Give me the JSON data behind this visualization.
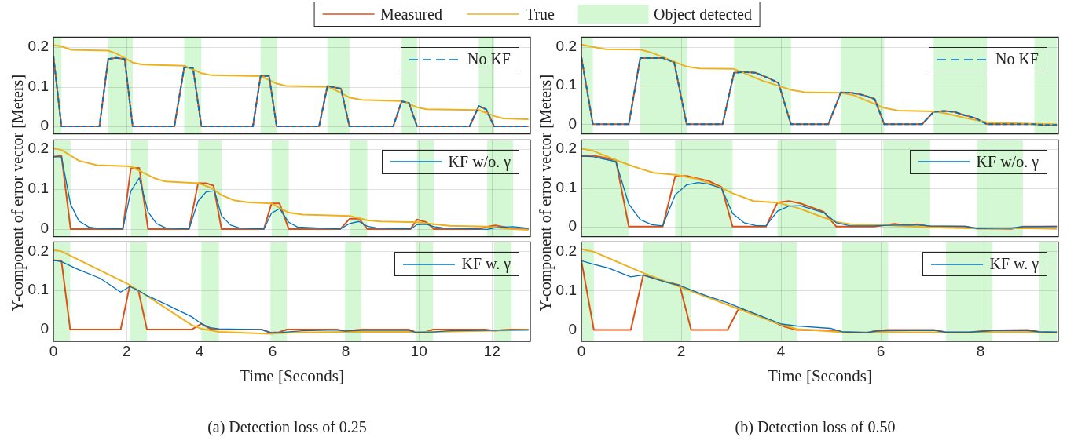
{
  "chart_data": [
    {
      "type": "line",
      "xlim": [
        0,
        13.05
      ],
      "xticks": [
        0,
        2,
        4,
        6,
        8,
        10,
        12
      ],
      "ylim": [
        -0.019,
        0.225
      ],
      "yticks": [
        0,
        0.1,
        0.2
      ],
      "grid": true,
      "legend": "top right",
      "tick_labels": "y",
      "bands": [
        {
          "axis": "x",
          "from": 0,
          "to": 0.22,
          "color": "#d4f8d4",
          "label": "Object detected"
        },
        {
          "axis": "x",
          "from": 1.5,
          "to": 2.17,
          "color": "#d4f8d4"
        },
        {
          "axis": "x",
          "from": 3.58,
          "to": 4.05,
          "color": "#d4f8d4"
        },
        {
          "axis": "x",
          "from": 5.67,
          "to": 6.11,
          "color": "#d4f8d4"
        },
        {
          "axis": "x",
          "from": 7.5,
          "to": 8.1,
          "color": "#d4f8d4"
        },
        {
          "axis": "x",
          "from": 9.53,
          "to": 9.95,
          "color": "#d4f8d4"
        },
        {
          "axis": "x",
          "from": 11.64,
          "to": 12.06,
          "color": "#d4f8d4"
        }
      ],
      "series": [
        {
          "name": "Measured",
          "color": "#d95319",
          "x": [
            0,
            0.22,
            1.26,
            1.5,
            1.72,
            1.95,
            2.17,
            3.31,
            3.58,
            3.82,
            4.05,
            5.46,
            5.67,
            5.9,
            6.11,
            7.27,
            7.5,
            7.87,
            8.1,
            9.3,
            9.53,
            9.73,
            9.95,
            11.39,
            11.64,
            11.84,
            12.06,
            13.0
          ],
          "values": [
            0.178,
            0,
            0,
            0.17,
            0.173,
            0.17,
            0,
            0,
            0.149,
            0.147,
            0,
            0,
            0.127,
            0.128,
            0,
            0,
            0.102,
            0.095,
            0,
            0,
            0.063,
            0.059,
            0,
            0,
            0.051,
            0.043,
            0,
            0
          ]
        },
        {
          "name": "True",
          "color": "#edb120",
          "x": [
            0,
            0.22,
            0.49,
            1.5,
            1.72,
            2.17,
            2.44,
            3.58,
            4.05,
            4.32,
            5.67,
            6.11,
            6.37,
            7.5,
            7.71,
            8.1,
            8.43,
            9.53,
            9.95,
            10.21,
            11.64,
            12.06,
            12.31,
            13.0
          ],
          "values": [
            0.205,
            0.202,
            0.193,
            0.191,
            0.184,
            0.161,
            0.156,
            0.153,
            0.134,
            0.129,
            0.127,
            0.108,
            0.102,
            0.1,
            0.092,
            0.073,
            0.067,
            0.064,
            0.048,
            0.043,
            0.041,
            0.026,
            0.02,
            0.018
          ]
        },
        {
          "name": "No KF",
          "color": "#0072bd",
          "line_style": "dashed",
          "x": [
            0,
            0.22,
            1.26,
            1.5,
            1.72,
            1.95,
            2.17,
            3.31,
            3.58,
            3.82,
            4.05,
            5.46,
            5.67,
            5.9,
            6.11,
            7.27,
            7.5,
            7.87,
            8.1,
            9.3,
            9.53,
            9.73,
            9.95,
            11.39,
            11.64,
            11.84,
            12.06,
            13.0
          ],
          "values": [
            0.178,
            0,
            0,
            0.17,
            0.173,
            0.17,
            0,
            0,
            0.149,
            0.147,
            0,
            0,
            0.127,
            0.128,
            0,
            0,
            0.102,
            0.095,
            0,
            0,
            0.063,
            0.059,
            0,
            0,
            0.051,
            0.043,
            0,
            0
          ]
        }
      ]
    },
    {
      "type": "line",
      "ylabel": "Y-component of error vector [Meters]",
      "xlim": [
        0,
        13.05
      ],
      "xticks": [
        0,
        2,
        4,
        6,
        8,
        10,
        12
      ],
      "ylim": [
        -0.019,
        0.223
      ],
      "yticks": [
        0,
        0.1,
        0.2
      ],
      "grid": true,
      "legend": "top right",
      "tick_labels": "y",
      "bands": [
        {
          "axis": "x",
          "from": 0,
          "to": 0.47,
          "color": "#d4f8d4"
        },
        {
          "axis": "x",
          "from": 2.12,
          "to": 2.59,
          "color": "#d4f8d4"
        },
        {
          "axis": "x",
          "from": 3.96,
          "to": 4.6,
          "color": "#d4f8d4"
        },
        {
          "axis": "x",
          "from": 5.97,
          "to": 6.44,
          "color": "#d4f8d4"
        },
        {
          "axis": "x",
          "from": 8.11,
          "to": 8.59,
          "color": "#d4f8d4"
        },
        {
          "axis": "x",
          "from": 9.95,
          "to": 10.41,
          "color": "#d4f8d4"
        },
        {
          "axis": "x",
          "from": 11.87,
          "to": 12.58,
          "color": "#d4f8d4"
        }
      ],
      "series": [
        {
          "color": "#d95319",
          "x": [
            0,
            0.22,
            0.47,
            1.9,
            2.12,
            2.35,
            2.59,
            3.71,
            3.96,
            4.18,
            4.38,
            4.6,
            5.76,
            5.97,
            6.19,
            6.44,
            7.85,
            8.11,
            8.36,
            8.59,
            9.77,
            9.95,
            10.21,
            10.41,
            11.64,
            11.87,
            12.09,
            12.36,
            12.58,
            13.0
          ],
          "values": [
            0.181,
            0.184,
            0,
            0,
            0.152,
            0.153,
            0,
            0,
            0.115,
            0.115,
            0.109,
            0,
            0,
            0.064,
            0.064,
            0,
            0,
            0.026,
            0.026,
            0,
            0,
            0.024,
            0.017,
            0,
            0,
            0.006,
            0.009,
            0.005,
            0,
            0
          ]
        },
        {
          "color": "#edb120",
          "x": [
            0,
            0.22,
            0.7,
            1.19,
            2.12,
            2.35,
            2.8,
            3.07,
            3.96,
            4.32,
            4.6,
            4.94,
            5.3,
            5.97,
            6.19,
            6.44,
            6.82,
            8.11,
            8.34,
            8.59,
            8.96,
            9.95,
            10.41,
            10.84,
            11.87,
            12.58,
            13.0
          ],
          "values": [
            0.202,
            0.198,
            0.171,
            0.16,
            0.157,
            0.146,
            0.126,
            0.119,
            0.115,
            0.103,
            0.085,
            0.072,
            0.067,
            0.064,
            0.053,
            0.041,
            0.036,
            0.033,
            0.028,
            0.022,
            0.019,
            0.017,
            0.012,
            0.008,
            0.006,
            0,
            -0.002
          ]
        },
        {
          "name": "KF w/o. γ",
          "color": "#0072bd",
          "x": [
            0,
            0.22,
            0.47,
            0.7,
            0.97,
            1.19,
            1.9,
            2.12,
            2.35,
            2.59,
            2.82,
            3.07,
            3.71,
            3.96,
            4.18,
            4.41,
            4.6,
            4.85,
            5.08,
            5.76,
            5.97,
            6.19,
            6.44,
            6.68,
            7.85,
            8.11,
            8.36,
            8.59,
            8.83,
            9.77,
            9.95,
            10.21,
            10.41,
            10.66,
            11.87,
            12.09,
            12.36,
            12.58,
            13.0
          ],
          "values": [
            0.181,
            0.181,
            0.062,
            0.02,
            0.005,
            0.002,
            0,
            0.095,
            0.128,
            0.043,
            0.014,
            0.003,
            0,
            0.07,
            0.093,
            0.096,
            0.033,
            0.01,
            0.003,
            0,
            0.04,
            0.051,
            0.017,
            0.005,
            0,
            0.014,
            0.019,
            0.007,
            0.003,
            0,
            0.011,
            0.012,
            0.006,
            0.003,
            -0.001,
            0.003,
            0.005,
            0.006,
            0.002
          ]
        }
      ]
    },
    {
      "type": "line",
      "xlabel": "Time [Seconds]",
      "annotations": [
        "(a) Detection loss of 0.25"
      ],
      "xlim": [
        0,
        13.05
      ],
      "xticks": [
        0,
        2,
        4,
        6,
        8,
        10,
        12
      ],
      "ylim": [
        -0.03,
        0.224
      ],
      "yticks": [
        0,
        0.1,
        0.2
      ],
      "grid": true,
      "legend": "top right",
      "bands": [
        {
          "axis": "x",
          "from": 0,
          "to": 0.46,
          "color": "#d4f8d4"
        },
        {
          "axis": "x",
          "from": 2.09,
          "to": 2.56,
          "color": "#d4f8d4"
        },
        {
          "axis": "x",
          "from": 4.05,
          "to": 4.53,
          "color": "#d4f8d4"
        },
        {
          "axis": "x",
          "from": 5.94,
          "to": 6.39,
          "color": "#d4f8d4"
        },
        {
          "axis": "x",
          "from": 7.98,
          "to": 8.43,
          "color": "#d4f8d4"
        },
        {
          "axis": "x",
          "from": 9.92,
          "to": 10.39,
          "color": "#d4f8d4"
        },
        {
          "axis": "x",
          "from": 12.06,
          "to": 12.54,
          "color": "#d4f8d4"
        }
      ],
      "series": [
        {
          "color": "#d95319",
          "x": [
            0,
            0.22,
            0.46,
            1.84,
            2.09,
            2.33,
            2.56,
            3.78,
            4.05,
            4.29,
            4.53,
            5.7,
            5.94,
            6.17,
            6.39,
            7.76,
            7.98,
            8.2,
            8.43,
            9.72,
            9.92,
            10.17,
            10.39,
            11.82,
            12.06,
            12.31,
            12.54,
            13.0
          ],
          "values": [
            0.177,
            0.176,
            0,
            0,
            0.113,
            0.098,
            0,
            0,
            0.015,
            0.002,
            0,
            0,
            -0.008,
            -0.007,
            0,
            0,
            -0.004,
            -0.002,
            0,
            0,
            -0.007,
            -0.007,
            0,
            0,
            -0.003,
            -0.001,
            0,
            0
          ]
        },
        {
          "color": "#edb120",
          "x": [
            0,
            0.22,
            2.09,
            2.56,
            3.78,
            4.05,
            4.53,
            5.94,
            6.39,
            7.98,
            10.39,
            12.54,
            13.0
          ],
          "values": [
            0.204,
            0.2,
            0.114,
            0.086,
            0.012,
            0.002,
            -0.006,
            -0.011,
            -0.008,
            -0.006,
            -0.006,
            -0.002,
            -0.001
          ]
        },
        {
          "name": "KF w. γ",
          "color": "#0072bd",
          "x": [
            0,
            0.22,
            0.65,
            1.28,
            1.84,
            2.09,
            2.33,
            2.56,
            3.07,
            3.33,
            3.78,
            4.05,
            4.29,
            4.53,
            5.7,
            5.94,
            6.17,
            6.39,
            6.82,
            7.76,
            7.98,
            8.43,
            9.72,
            9.92,
            10.39,
            10.84,
            11.82,
            12.54,
            13.0
          ],
          "values": [
            0.177,
            0.174,
            0.155,
            0.131,
            0.096,
            0.11,
            0.1,
            0.087,
            0.065,
            0.053,
            0.033,
            0.015,
            0.005,
            0.002,
            0,
            -0.008,
            -0.008,
            -0.006,
            -0.003,
            -0.001,
            -0.004,
            -0.002,
            -0.002,
            -0.007,
            -0.006,
            -0.003,
            -0.002,
            -0.001,
            -0.001
          ]
        }
      ]
    },
    {
      "type": "line",
      "xlim": [
        0,
        9.56
      ],
      "xticks": [
        0,
        2,
        4,
        6,
        8
      ],
      "ylim": [
        -0.025,
        0.225
      ],
      "yticks": [
        0,
        0.1,
        0.2
      ],
      "grid": true,
      "legend": "top right",
      "tick_labels": "y",
      "bands": [
        {
          "axis": "x",
          "from": 0,
          "to": 0.23,
          "color": "#d4f8d4"
        },
        {
          "axis": "x",
          "from": 1.18,
          "to": 2.11,
          "color": "#d4f8d4"
        },
        {
          "axis": "x",
          "from": 3.06,
          "to": 4.2,
          "color": "#d4f8d4"
        },
        {
          "axis": "x",
          "from": 5.2,
          "to": 6.07,
          "color": "#d4f8d4"
        },
        {
          "axis": "x",
          "from": 7.06,
          "to": 8.13,
          "color": "#d4f8d4"
        },
        {
          "axis": "x",
          "from": 9.08,
          "to": 9.53,
          "color": "#d4f8d4"
        }
      ],
      "series": [
        {
          "color": "#d95319",
          "x": [
            0,
            0.23,
            0.95,
            1.18,
            1.64,
            1.86,
            2.11,
            2.83,
            3.06,
            3.26,
            3.49,
            3.72,
            3.95,
            4.2,
            4.95,
            5.2,
            5.43,
            5.66,
            5.88,
            6.07,
            6.83,
            7.06,
            7.27,
            7.47,
            7.66,
            7.89,
            8.13,
            9.08,
            9.28,
            9.53
          ],
          "values": [
            0.173,
            0,
            0,
            0.171,
            0.171,
            0.16,
            0,
            0,
            0.133,
            0.135,
            0.133,
            0.121,
            0.107,
            0,
            0,
            0.082,
            0.081,
            0.075,
            0.065,
            0,
            0,
            0.032,
            0.034,
            0.032,
            0.024,
            0.016,
            0,
            0,
            -0.002,
            -0.002
          ]
        },
        {
          "color": "#edb120",
          "x": [
            0,
            0.23,
            0.49,
            1.18,
            1.41,
            2.11,
            2.37,
            3.06,
            3.62,
            4.2,
            4.51,
            5.2,
            5.46,
            6.07,
            6.35,
            7.06,
            7.3,
            7.73,
            8.13,
            9.08,
            9.53
          ],
          "values": [
            0.206,
            0.2,
            0.194,
            0.193,
            0.185,
            0.149,
            0.144,
            0.143,
            0.113,
            0.089,
            0.082,
            0.081,
            0.075,
            0.042,
            0.035,
            0.033,
            0.028,
            0.015,
            0.005,
            0.001,
            0
          ]
        },
        {
          "name": "No KF",
          "color": "#0072bd",
          "line_style": "dashed",
          "x": [
            0,
            0.23,
            0.95,
            1.18,
            1.64,
            1.86,
            2.11,
            2.83,
            3.06,
            3.26,
            3.49,
            3.72,
            3.95,
            4.2,
            4.95,
            5.2,
            5.43,
            5.66,
            5.88,
            6.07,
            6.83,
            7.06,
            7.27,
            7.47,
            7.66,
            7.89,
            8.13,
            9.08,
            9.28,
            9.53
          ],
          "values": [
            0.173,
            0,
            0,
            0.171,
            0.171,
            0.16,
            0,
            0,
            0.133,
            0.135,
            0.133,
            0.121,
            0.107,
            0,
            0,
            0.082,
            0.081,
            0.075,
            0.065,
            0,
            0,
            0.032,
            0.034,
            0.032,
            0.024,
            0.016,
            0,
            0,
            -0.002,
            -0.002
          ]
        }
      ]
    },
    {
      "type": "line",
      "ylabel": "Y-component of error vector [Meters]",
      "xlim": [
        0,
        9.56
      ],
      "xticks": [
        0,
        2,
        4,
        6,
        8
      ],
      "ylim": [
        -0.026,
        0.224
      ],
      "yticks": [
        0,
        0.1,
        0.2
      ],
      "grid": true,
      "legend": "top right",
      "tick_labels": "y",
      "bands": [
        {
          "axis": "x",
          "from": 0,
          "to": 0.95,
          "color": "#d4f8d4"
        },
        {
          "axis": "x",
          "from": 1.88,
          "to": 3.03,
          "color": "#d4f8d4"
        },
        {
          "axis": "x",
          "from": 3.93,
          "to": 5.11,
          "color": "#d4f8d4"
        },
        {
          "axis": "x",
          "from": 6.05,
          "to": 6.99,
          "color": "#d4f8d4"
        },
        {
          "axis": "x",
          "from": 7.93,
          "to": 8.85,
          "color": "#d4f8d4"
        }
      ],
      "series": [
        {
          "color": "#d95319",
          "x": [
            0,
            0.23,
            0.69,
            0.95,
            1.63,
            1.88,
            2.11,
            2.55,
            2.81,
            3.03,
            3.7,
            3.93,
            4.16,
            4.39,
            4.86,
            5.11,
            5.86,
            6.28,
            6.51,
            6.74,
            6.99,
            7.7,
            7.93,
            8.62,
            8.85,
            9.53
          ],
          "values": [
            0.182,
            0.184,
            0.172,
            0,
            0,
            0.13,
            0.131,
            0.118,
            0.102,
            0,
            0,
            0.062,
            0.066,
            0.06,
            0.038,
            0,
            0,
            0.007,
            0.003,
            0.006,
            0,
            0,
            -0.005,
            -0.006,
            0,
            0
          ]
        },
        {
          "color": "#edb120",
          "x": [
            0,
            0.23,
            0.69,
            0.95,
            1.22,
            1.45,
            1.88,
            2.3,
            2.81,
            3.03,
            3.45,
            3.93,
            4.34,
            4.8,
            5.11,
            5.39,
            6.05,
            6.99,
            7.93,
            8.85,
            9.53
          ],
          "values": [
            0.202,
            0.196,
            0.172,
            0.16,
            0.148,
            0.139,
            0.134,
            0.124,
            0.1,
            0.086,
            0.066,
            0.062,
            0.048,
            0.026,
            0.012,
            0.006,
            0.004,
            -0.002,
            -0.005,
            -0.004,
            -0.006
          ]
        },
        {
          "name": "KF w/o. γ",
          "color": "#0072bd",
          "x": [
            0,
            0.23,
            0.69,
            0.95,
            1.18,
            1.41,
            1.63,
            1.88,
            2.11,
            2.34,
            2.55,
            2.81,
            3.03,
            3.26,
            3.49,
            3.7,
            3.93,
            4.16,
            4.39,
            4.86,
            5.11,
            5.39,
            5.86,
            6.28,
            6.74,
            6.99,
            7.7,
            7.93,
            8.62,
            8.85,
            9.53
          ],
          "values": [
            0.182,
            0.181,
            0.168,
            0.058,
            0.018,
            0.005,
            0.002,
            0.082,
            0.108,
            0.114,
            0.11,
            0.099,
            0.034,
            0.01,
            0.003,
            0.002,
            0.04,
            0.053,
            0.054,
            0.036,
            0.01,
            0.002,
            0.002,
            0.004,
            0.004,
            0.002,
            0.001,
            -0.005,
            -0.004,
            0,
            0.001
          ]
        }
      ]
    },
    {
      "type": "line",
      "xlabel": "Time [Seconds]",
      "annotations": [
        "(b) Detection loss of 0.50"
      ],
      "xlim": [
        0,
        9.56
      ],
      "xticks": [
        0,
        2,
        4,
        6,
        8
      ],
      "ylim": [
        -0.029,
        0.224
      ],
      "yticks": [
        0,
        0.1,
        0.2
      ],
      "grid": true,
      "legend": "top right",
      "bands": [
        {
          "axis": "x",
          "from": 0,
          "to": 0.25,
          "color": "#d4f8d4"
        },
        {
          "axis": "x",
          "from": 1.24,
          "to": 2.2,
          "color": "#d4f8d4"
        },
        {
          "axis": "x",
          "from": 3.16,
          "to": 4.32,
          "color": "#d4f8d4"
        },
        {
          "axis": "x",
          "from": 5.23,
          "to": 6.15,
          "color": "#d4f8d4"
        },
        {
          "axis": "x",
          "from": 7.31,
          "to": 8.24,
          "color": "#d4f8d4"
        },
        {
          "axis": "x",
          "from": 9.18,
          "to": 9.53,
          "color": "#d4f8d4"
        }
      ],
      "series": [
        {
          "color": "#d95319",
          "x": [
            0,
            0.25,
            0.99,
            1.24,
            1.71,
            1.97,
            2.2,
            2.93,
            3.16,
            3.62,
            4.08,
            4.32,
            4.99,
            5.23,
            5.72,
            5.92,
            6.15,
            7.07,
            7.31,
            7.76,
            8.24,
            8.95,
            9.18,
            9.53
          ],
          "values": [
            0.176,
            0,
            0,
            0.14,
            0.122,
            0.114,
            0,
            0,
            0.056,
            0.033,
            0.008,
            0,
            -0.001,
            -0.005,
            -0.007,
            -0.002,
            0,
            0,
            -0.006,
            -0.006,
            -0.001,
            0,
            -0.005,
            -0.006
          ]
        },
        {
          "color": "#edb120",
          "x": [
            0,
            0.25,
            1.24,
            1.97,
            3.16,
            3.95,
            4.32,
            5.23,
            9.53
          ],
          "values": [
            0.206,
            0.199,
            0.145,
            0.11,
            0.053,
            0.016,
            0.002,
            -0.006,
            -0.006
          ]
        },
        {
          "name": "KF w. γ",
          "color": "#0072bd",
          "x": [
            0,
            0.25,
            0.53,
            0.99,
            1.24,
            1.71,
            1.97,
            2.5,
            2.93,
            3.16,
            3.62,
            4.01,
            4.32,
            4.99,
            5.23,
            5.72,
            5.92,
            6.15,
            7.07,
            7.31,
            7.76,
            8.24,
            8.95,
            9.18,
            9.53
          ],
          "values": [
            0.176,
            0.167,
            0.158,
            0.135,
            0.14,
            0.121,
            0.113,
            0.087,
            0.069,
            0.057,
            0.034,
            0.015,
            0.01,
            0.004,
            -0.005,
            -0.007,
            -0.003,
            -0.002,
            -0.001,
            -0.006,
            -0.006,
            -0.002,
            -0.002,
            -0.005,
            -0.006
          ]
        }
      ]
    }
  ]
}
